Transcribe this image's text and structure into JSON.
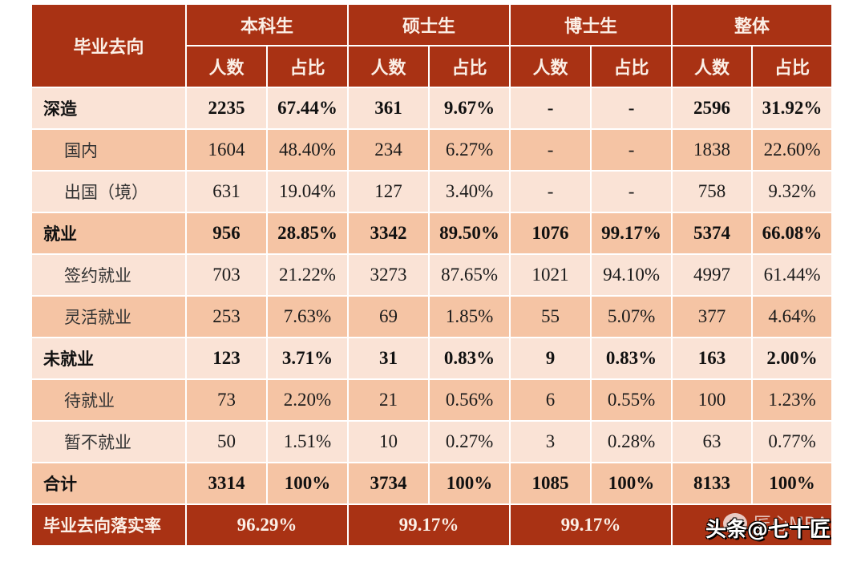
{
  "table": {
    "header": {
      "row_label": "毕业去向",
      "groups": [
        "本科生",
        "硕士生",
        "博士生",
        "整体"
      ],
      "subcols": [
        "人数",
        "占比"
      ]
    },
    "rows": [
      {
        "label": "深造",
        "type": "cat",
        "shade": "light",
        "values": [
          "2235",
          "67.44%",
          "361",
          "9.67%",
          "-",
          "-",
          "2596",
          "31.92%"
        ]
      },
      {
        "label": "国内",
        "type": "sub",
        "shade": "dark",
        "values": [
          "1604",
          "48.40%",
          "234",
          "6.27%",
          "-",
          "-",
          "1838",
          "22.60%"
        ]
      },
      {
        "label": "出国（境）",
        "type": "sub",
        "shade": "light",
        "values": [
          "631",
          "19.04%",
          "127",
          "3.40%",
          "-",
          "-",
          "758",
          "9.32%"
        ]
      },
      {
        "label": "就业",
        "type": "cat",
        "shade": "dark",
        "values": [
          "956",
          "28.85%",
          "3342",
          "89.50%",
          "1076",
          "99.17%",
          "5374",
          "66.08%"
        ]
      },
      {
        "label": "签约就业",
        "type": "sub",
        "shade": "light",
        "values": [
          "703",
          "21.22%",
          "3273",
          "87.65%",
          "1021",
          "94.10%",
          "4997",
          "61.44%"
        ]
      },
      {
        "label": "灵活就业",
        "type": "sub",
        "shade": "dark",
        "values": [
          "253",
          "7.63%",
          "69",
          "1.85%",
          "55",
          "5.07%",
          "377",
          "4.64%"
        ]
      },
      {
        "label": "未就业",
        "type": "cat",
        "shade": "light",
        "values": [
          "123",
          "3.71%",
          "31",
          "0.83%",
          "9",
          "0.83%",
          "163",
          "2.00%"
        ]
      },
      {
        "label": "待就业",
        "type": "sub",
        "shade": "dark",
        "values": [
          "73",
          "2.20%",
          "21",
          "0.56%",
          "6",
          "0.55%",
          "100",
          "1.23%"
        ]
      },
      {
        "label": "暂不就业",
        "type": "sub",
        "shade": "light",
        "values": [
          "50",
          "1.51%",
          "10",
          "0.27%",
          "3",
          "0.28%",
          "63",
          "0.77%"
        ]
      },
      {
        "label": "合计",
        "type": "cat",
        "shade": "dark",
        "values": [
          "3314",
          "100%",
          "3734",
          "100%",
          "1085",
          "100%",
          "8133",
          "100%"
        ]
      }
    ],
    "rate_row": {
      "label": "毕业去向落实率",
      "values": [
        "96.29%",
        "99.17%",
        "99.17%",
        ""
      ]
    }
  },
  "watermark": {
    "main": "头条@七十匠",
    "sub": "匠心MBA"
  },
  "colors": {
    "header_bg": "#A93214",
    "row_light": "#FAE3D6",
    "row_dark": "#F5C4A4",
    "header_text": "#FBEFE6"
  }
}
